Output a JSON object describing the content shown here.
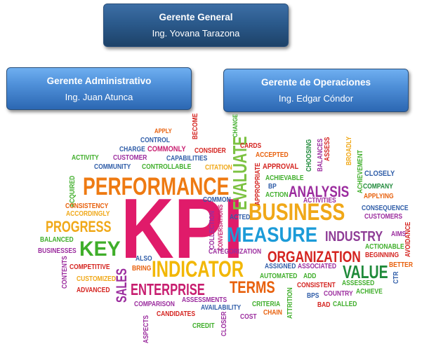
{
  "org_chart": {
    "general_manager": {
      "role": "Gerente General",
      "name": "Ing. Yovana Tarazona"
    },
    "admin_manager": {
      "role": "Gerente Administrativo",
      "name": "Ing. Juan Atunca"
    },
    "operations_manager": {
      "role": "Gerente de Operaciones",
      "name": "Ing. Edgar Cóndor"
    }
  },
  "word_cloud": {
    "words": [
      {
        "text": "KPI",
        "color": "#e01b6a"
      },
      {
        "text": "PERFORMANCE",
        "color": "#ee7a12"
      },
      {
        "text": "BUSINESS",
        "color": "#f0a818"
      },
      {
        "text": "MEASURE",
        "color": "#1c9bd8"
      },
      {
        "text": "INDICATOR",
        "color": "#f2b705"
      },
      {
        "text": "KEY",
        "color": "#3fae2a"
      },
      {
        "text": "PROGRESS",
        "color": "#f0a818"
      },
      {
        "text": "ENTERPRISE",
        "color": "#c71d6f"
      },
      {
        "text": "ORGANIZATION",
        "color": "#d4231f"
      },
      {
        "text": "ANALYSIS",
        "color": "#9b2c9e"
      },
      {
        "text": "EVALUATE",
        "color": "#7cc242"
      },
      {
        "text": "INDUSTRY",
        "color": "#8e3c96"
      },
      {
        "text": "VALUE",
        "color": "#1f8a3a"
      },
      {
        "text": "TERMS",
        "color": "#e8600c"
      },
      {
        "text": "SALES",
        "color": "#9b2c9e"
      },
      {
        "text": "COMMON",
        "color": "#2f5da8"
      },
      {
        "text": "APPLY",
        "color": "#e8600c"
      },
      {
        "text": "CONTROL",
        "color": "#2f5da8"
      },
      {
        "text": "BECOME",
        "color": "#d4231f"
      },
      {
        "text": "CHANGE",
        "color": "#3fae2a"
      },
      {
        "text": "CARDS",
        "color": "#d4231f"
      },
      {
        "text": "CHARGE",
        "color": "#2f5da8"
      },
      {
        "text": "COMMONLY",
        "color": "#c71d6f"
      },
      {
        "text": "CONSIDER",
        "color": "#d4231f"
      },
      {
        "text": "ACCEPTED",
        "color": "#e8600c"
      },
      {
        "text": "CHOOSING",
        "color": "#1f8a3a"
      },
      {
        "text": "ASSESS",
        "color": "#d4231f"
      },
      {
        "text": "ACTIVITY",
        "color": "#3fae2a"
      },
      {
        "text": "CUSTOMER",
        "color": "#9b2c9e"
      },
      {
        "text": "CAPABILITIES",
        "color": "#2f5da8"
      },
      {
        "text": "APPROVAL",
        "color": "#d4231f"
      },
      {
        "text": "BALANCES",
        "color": "#9b2c9e"
      },
      {
        "text": "BROADLY",
        "color": "#f0a818"
      },
      {
        "text": "COMMUNITY",
        "color": "#2f5da8"
      },
      {
        "text": "CONTROLLABLE",
        "color": "#3fae2a"
      },
      {
        "text": "CITATION",
        "color": "#f0a818"
      },
      {
        "text": "ACHIEVABLE",
        "color": "#3fae2a"
      },
      {
        "text": "ACHIEVEMENT",
        "color": "#3fae2a"
      },
      {
        "text": "CLOSELY",
        "color": "#2f5da8"
      },
      {
        "text": "APPROPRIATE",
        "color": "#d4231f"
      },
      {
        "text": "BP",
        "color": "#2f5da8"
      },
      {
        "text": "ACTION",
        "color": "#3fae2a"
      },
      {
        "text": "ACTIVITIES",
        "color": "#9b2c9e"
      },
      {
        "text": "COMPANY",
        "color": "#1f8a3a"
      },
      {
        "text": "APPLYING",
        "color": "#e8600c"
      },
      {
        "text": "ACQUIRED",
        "color": "#3fae2a"
      },
      {
        "text": "CONSISTENCY",
        "color": "#e8600c"
      },
      {
        "text": "ACCORDINGLY",
        "color": "#f0a818"
      },
      {
        "text": "CONSEQUENCE",
        "color": "#2f5da8"
      },
      {
        "text": "CUSTOMERS",
        "color": "#9b2c9e"
      },
      {
        "text": "COLLECTION",
        "color": "#9b2c9e"
      },
      {
        "text": "CONVERSATIONS",
        "color": "#c71d6f"
      },
      {
        "text": "ACTED",
        "color": "#2f5da8"
      },
      {
        "text": "AIMS",
        "color": "#9b2c9e"
      },
      {
        "text": "BALANCED",
        "color": "#3fae2a"
      },
      {
        "text": "BUSINESSES",
        "color": "#9b2c9e"
      },
      {
        "text": "CATEGORIZATION",
        "color": "#9b2c9e"
      },
      {
        "text": "ACTIONABLE",
        "color": "#3fae2a"
      },
      {
        "text": "BEGINNING",
        "color": "#d4231f"
      },
      {
        "text": "AVOIDANCE",
        "color": "#d4231f"
      },
      {
        "text": "CONTENTS",
        "color": "#9b2c9e"
      },
      {
        "text": "ALSO",
        "color": "#2f5da8"
      },
      {
        "text": "BRING",
        "color": "#e8600c"
      },
      {
        "text": "ASSIGNED",
        "color": "#2f5da8"
      },
      {
        "text": "ASSOCIATED",
        "color": "#9b2c9e"
      },
      {
        "text": "BETTER",
        "color": "#e8600c"
      },
      {
        "text": "COMPETITIVE",
        "color": "#d4231f"
      },
      {
        "text": "AUTOMATED",
        "color": "#3fae2a"
      },
      {
        "text": "ADD",
        "color": "#3fae2a"
      },
      {
        "text": "CUSTOMIZED",
        "color": "#f0a818"
      },
      {
        "text": "ADVANCED",
        "color": "#d4231f"
      },
      {
        "text": "CONSISTENT",
        "color": "#d4231f"
      },
      {
        "text": "ASSESSED",
        "color": "#3fae2a"
      },
      {
        "text": "CTR",
        "color": "#2f5da8"
      },
      {
        "text": "COUNTRY",
        "color": "#9b2c9e"
      },
      {
        "text": "ACHIEVE",
        "color": "#3fae2a"
      },
      {
        "text": "BPS",
        "color": "#2f5da8"
      },
      {
        "text": "COMPARISON",
        "color": "#9b2c9e"
      },
      {
        "text": "ASSESSMENTS",
        "color": "#9b2c9e"
      },
      {
        "text": "CRITERIA",
        "color": "#3fae2a"
      },
      {
        "text": "BAD",
        "color": "#d4231f"
      },
      {
        "text": "CALLED",
        "color": "#3fae2a"
      },
      {
        "text": "AVAILABILITY",
        "color": "#2f5da8"
      },
      {
        "text": "CHAIN",
        "color": "#e8600c"
      },
      {
        "text": "ATTRITION",
        "color": "#3fae2a"
      },
      {
        "text": "CANDIDATES",
        "color": "#d4231f"
      },
      {
        "text": "ASPECTS",
        "color": "#9b2c9e"
      },
      {
        "text": "CREDIT",
        "color": "#3fae2a"
      },
      {
        "text": "CLOSER",
        "color": "#9b2c9e"
      },
      {
        "text": "COST",
        "color": "#9b2c9e"
      }
    ]
  }
}
